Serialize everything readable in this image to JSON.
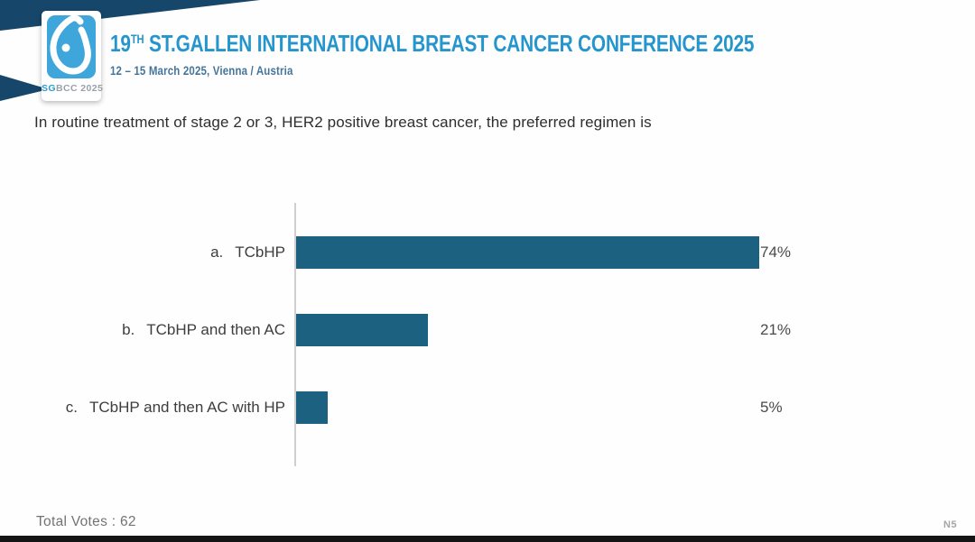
{
  "header": {
    "logo": {
      "sg": "SG",
      "rest": "BCC 2025",
      "square_color": "#3EA6DA",
      "icon": "breast-droplet-icon"
    },
    "banner_color": "#16476A",
    "title_number": "19",
    "title_ordinal": "TH",
    "title_text": "ST.GALLEN INTERNATIONAL BREAST CANCER CONFERENCE 2025",
    "title_color": "#2496CD",
    "subtitle": "12 – 15 March 2025, Vienna / Austria",
    "subtitle_color": "#45759B"
  },
  "question": "In routine treatment of stage 2 or 3, HER2 positive breast cancer, the preferred regimen is",
  "chart_data": {
    "type": "bar",
    "orientation": "horizontal",
    "option_letters": [
      "a.",
      "b.",
      "c."
    ],
    "categories": [
      "TCbHP",
      "TCbHP and then AC",
      "TCbHP and then AC with HP"
    ],
    "values": [
      74,
      21,
      5
    ],
    "value_labels": [
      "74%",
      "21%",
      "5%"
    ],
    "bar_color": "#1D6180",
    "axis_color": "#CFCFCF",
    "xlim": [
      0,
      100
    ],
    "grid": false,
    "legend": false,
    "title": "In routine treatment of stage 2 or 3, HER2 positive breast cancer, the preferred regimen is"
  },
  "footer": {
    "total_votes": "Total Votes : 62",
    "slide_ref": "N5"
  }
}
